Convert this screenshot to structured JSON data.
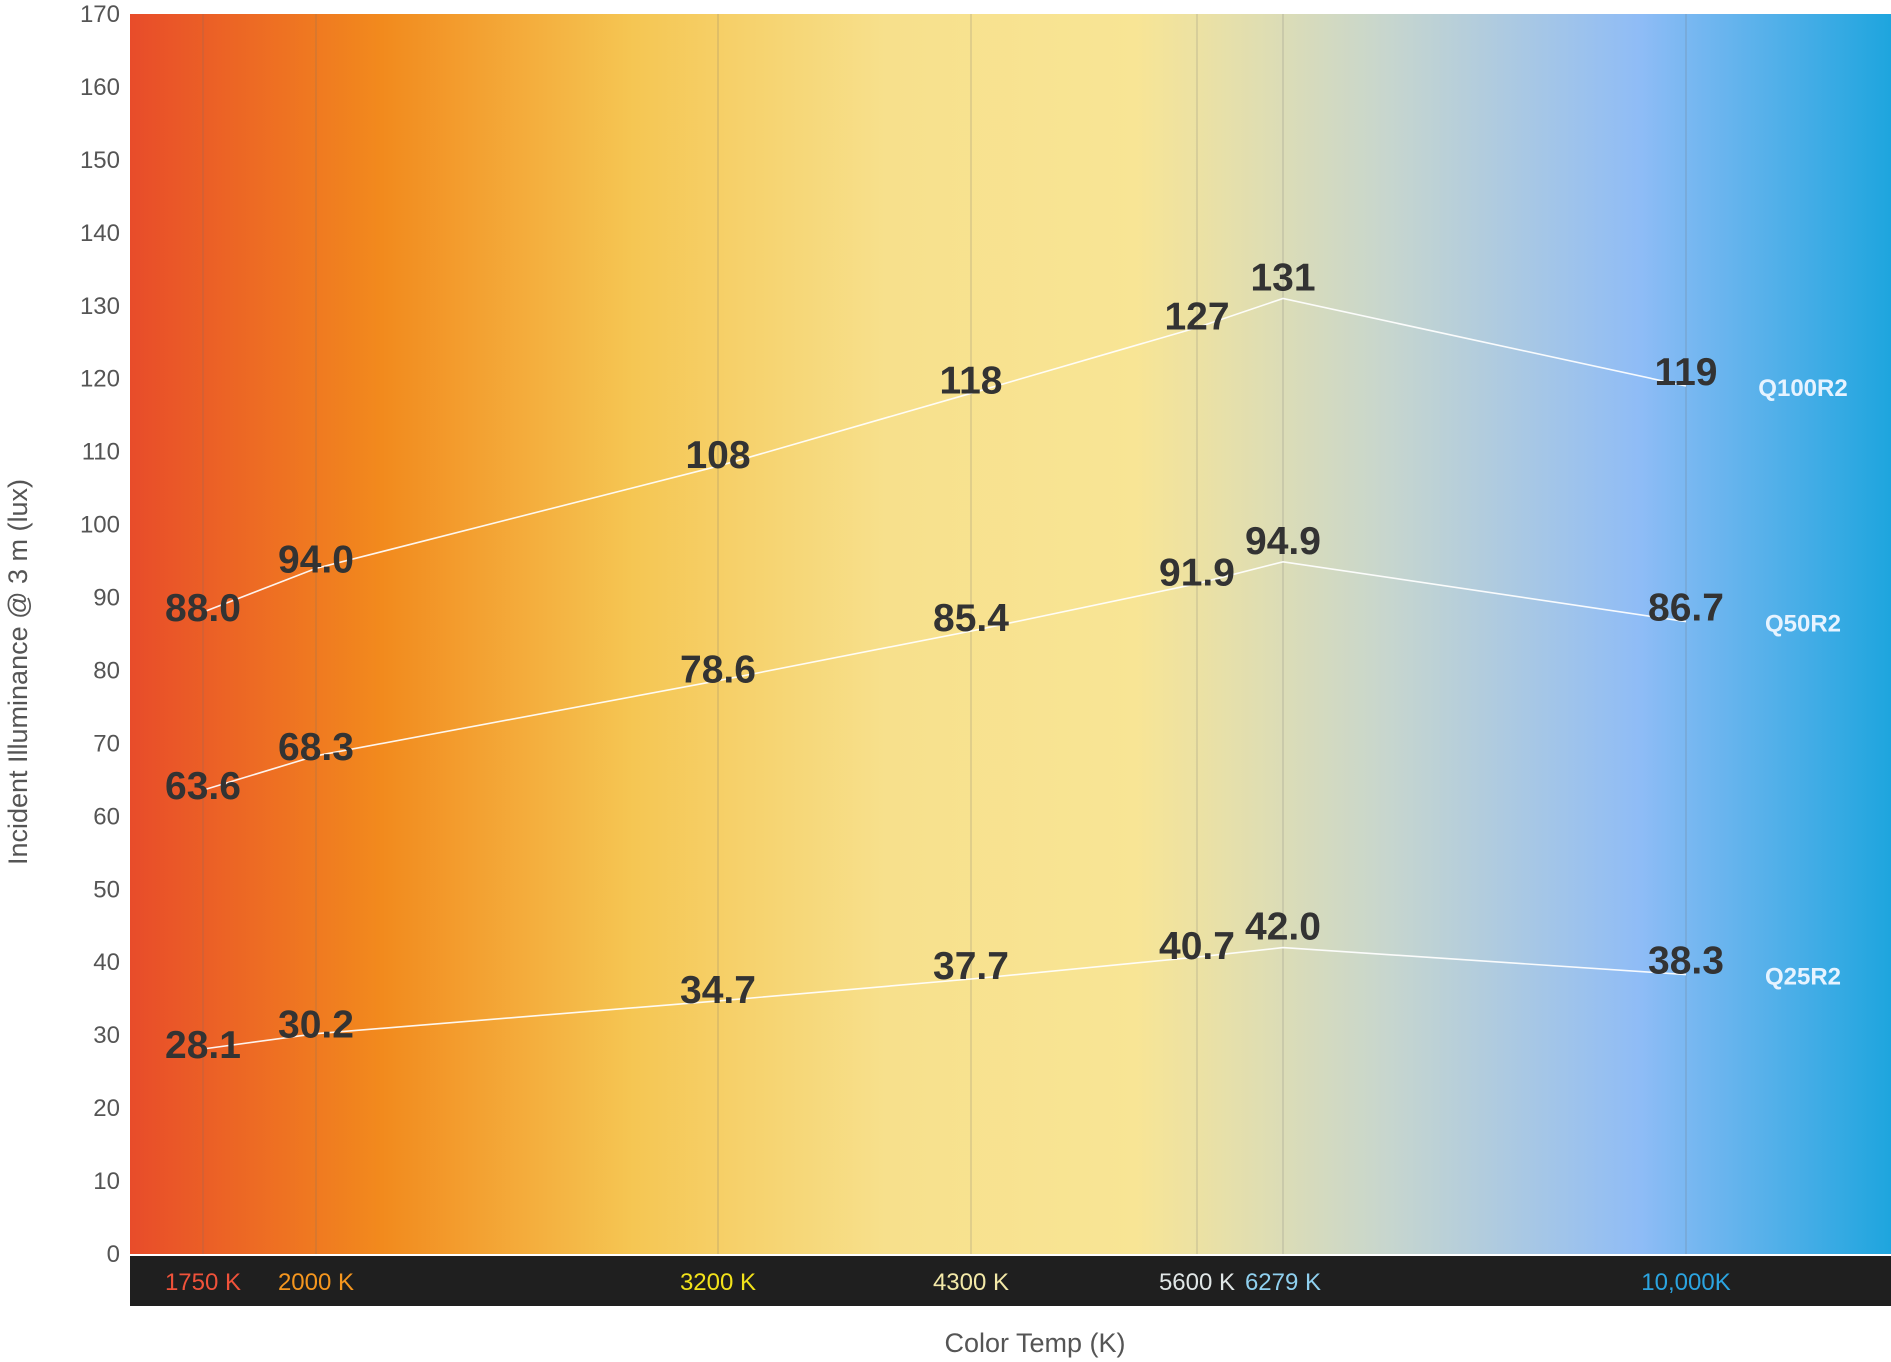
{
  "chart_data": {
    "type": "line",
    "xlabel": "Color Temp (K)",
    "ylabel": "Incident Illuminance @ 3 m (lux)",
    "ylim": [
      0,
      170
    ],
    "yticks": [
      0,
      10,
      20,
      30,
      40,
      50,
      60,
      70,
      80,
      90,
      100,
      110,
      120,
      130,
      140,
      150,
      160,
      170
    ],
    "x": [
      1750,
      2000,
      3200,
      4300,
      5600,
      6279,
      10000
    ],
    "x_tick_labels": [
      "1750 K",
      "2000 K",
      "3200 K",
      "4300 K",
      "5600 K",
      "6279 K",
      "10,000K"
    ],
    "x_tick_colors": [
      "#f0523a",
      "#f5961e",
      "#f2e21a",
      "#f3e9a8",
      "#e0e6e6",
      "#8fd0ef",
      "#2ba4e0"
    ],
    "series": [
      {
        "name": "Q100R2",
        "values": [
          88.0,
          94.0,
          108,
          118,
          127,
          131,
          119
        ],
        "labels": [
          "88.0",
          "94.0",
          "108",
          "118",
          "127",
          "131",
          "119"
        ]
      },
      {
        "name": "Q50R2",
        "values": [
          63.6,
          68.3,
          78.6,
          85.4,
          91.9,
          94.9,
          86.7
        ],
        "labels": [
          "63.6",
          "68.3",
          "78.6",
          "85.4",
          "91.9",
          "94.9",
          "86.7"
        ]
      },
      {
        "name": "Q25R2",
        "values": [
          28.1,
          30.2,
          34.7,
          37.7,
          40.7,
          42.0,
          38.3
        ],
        "labels": [
          "28.1",
          "30.2",
          "34.7",
          "37.7",
          "40.7",
          "42.0",
          "38.3"
        ]
      }
    ],
    "background_gradient": [
      "#e84c2a",
      "#f28a1d",
      "#f5c653",
      "#f7e08c",
      "#f8e595",
      "#c7d6ce",
      "#8fbcf6",
      "#1ea5de"
    ],
    "gridlines": "vertical at data points",
    "legend": "series names at right end of lines"
  }
}
